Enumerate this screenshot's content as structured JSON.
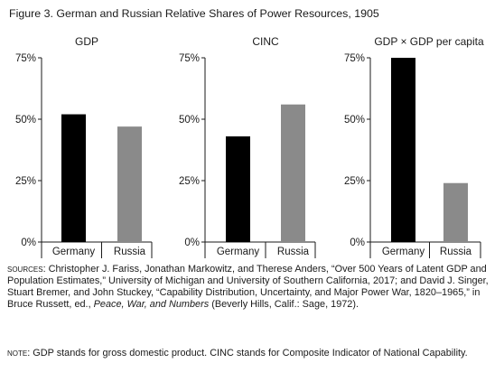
{
  "figure": {
    "title": "Figure 3.  German and Russian Relative Shares of Power Resources, 1905"
  },
  "colors": {
    "germany": "#000000",
    "russia": "#8a8a8a",
    "axis": "#1a1a1a"
  },
  "chart_data": [
    {
      "type": "bar",
      "title": "GDP",
      "categories": [
        "Germany",
        "Russia"
      ],
      "values": [
        52,
        47
      ],
      "ylim": [
        0,
        75
      ],
      "yticks": [
        "0%",
        "25%",
        "50%",
        "75%"
      ],
      "grid": false
    },
    {
      "type": "bar",
      "title": "CINC",
      "categories": [
        "Germany",
        "Russia"
      ],
      "values": [
        43,
        56
      ],
      "ylim": [
        0,
        75
      ],
      "yticks": [
        "0%",
        "25%",
        "50%",
        "75%"
      ],
      "grid": false
    },
    {
      "type": "bar",
      "title": "GDP × GDP per capita",
      "categories": [
        "Germany",
        "Russia"
      ],
      "values": [
        75,
        24
      ],
      "ylim": [
        0,
        75
      ],
      "yticks": [
        "0%",
        "25%",
        "50%",
        "75%"
      ],
      "grid": false
    }
  ],
  "notes": {
    "sources_label": "sources:",
    "sources_text": " Christopher J. Fariss, Jonathan Markowitz, and Therese Anders, “Over 500 Years of Latent GDP and Population Estimates,” University of Michigan and University of Southern California, 2017; and David J. Singer, Stuart Bremer, and John Stuckey, “Capability Distribution, Uncertainty, and Major Power War, 1820–1965,” in Bruce Russett, ed., ",
    "sources_italic": "Peace, War, and Numbers",
    "sources_tail": " (Beverly Hills, Calif.: Sage, 1972).",
    "note_label": "note:",
    "note_text": " GDP stands for gross domestic product. CINC stands for Composite Indicator of National Capability."
  }
}
